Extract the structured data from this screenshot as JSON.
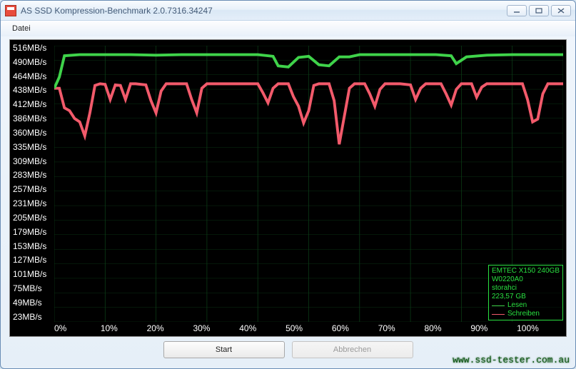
{
  "window": {
    "title": "AS SSD Kompression-Benchmark 2.0.7316.34247"
  },
  "menu": {
    "file": "Datei"
  },
  "chart": {
    "type": "line",
    "background_color": "#000000",
    "grid_color": "#0c4018",
    "text_color": "#ffffff",
    "y_labels": [
      "516MB/s",
      "490MB/s",
      "464MB/s",
      "438MB/s",
      "412MB/s",
      "386MB/s",
      "360MB/s",
      "335MB/s",
      "309MB/s",
      "283MB/s",
      "257MB/s",
      "231MB/s",
      "205MB/s",
      "179MB/s",
      "153MB/s",
      "127MB/s",
      "101MB/s",
      "75MB/s",
      "49MB/s",
      "23MB/s"
    ],
    "y_max": 516,
    "y_min": 23,
    "y_tick_count": 20,
    "x_labels": [
      "0%",
      "10%",
      "20%",
      "30%",
      "40%",
      "50%",
      "60%",
      "70%",
      "80%",
      "90%",
      "100%"
    ],
    "x_min": 0,
    "x_max": 100,
    "x_tick_step": 10,
    "label_fontsize": 12,
    "series": {
      "read": {
        "label": "Lesen",
        "color": "#3fd34a",
        "line_width": 1.3,
        "points": [
          [
            0,
            440
          ],
          [
            1,
            460
          ],
          [
            2,
            498
          ],
          [
            5,
            500
          ],
          [
            10,
            500
          ],
          [
            15,
            500
          ],
          [
            20,
            499
          ],
          [
            25,
            500
          ],
          [
            30,
            500
          ],
          [
            35,
            500
          ],
          [
            40,
            500
          ],
          [
            43,
            497
          ],
          [
            44,
            480
          ],
          [
            46,
            478
          ],
          [
            48,
            495
          ],
          [
            50,
            497
          ],
          [
            52,
            482
          ],
          [
            54,
            480
          ],
          [
            56,
            496
          ],
          [
            58,
            496
          ],
          [
            60,
            500
          ],
          [
            65,
            500
          ],
          [
            70,
            500
          ],
          [
            75,
            500
          ],
          [
            78,
            498
          ],
          [
            79,
            484
          ],
          [
            81,
            496
          ],
          [
            85,
            499
          ],
          [
            90,
            500
          ],
          [
            95,
            500
          ],
          [
            100,
            500
          ]
        ]
      },
      "write": {
        "label": "Schreiben",
        "color": "#f25a6b",
        "line_width": 1.3,
        "points": [
          [
            0,
            440
          ],
          [
            1,
            440
          ],
          [
            2,
            405
          ],
          [
            3,
            400
          ],
          [
            4,
            386
          ],
          [
            5,
            380
          ],
          [
            6,
            355
          ],
          [
            7,
            396
          ],
          [
            8,
            445
          ],
          [
            9,
            448
          ],
          [
            10,
            447
          ],
          [
            11,
            420
          ],
          [
            12,
            446
          ],
          [
            13,
            445
          ],
          [
            14,
            420
          ],
          [
            15,
            448
          ],
          [
            16,
            448
          ],
          [
            18,
            446
          ],
          [
            19,
            418
          ],
          [
            20,
            396
          ],
          [
            21,
            435
          ],
          [
            22,
            448
          ],
          [
            24,
            448
          ],
          [
            26,
            448
          ],
          [
            27,
            420
          ],
          [
            28,
            396
          ],
          [
            29,
            440
          ],
          [
            30,
            448
          ],
          [
            32,
            448
          ],
          [
            35,
            448
          ],
          [
            38,
            448
          ],
          [
            40,
            448
          ],
          [
            41,
            432
          ],
          [
            42,
            414
          ],
          [
            43,
            440
          ],
          [
            44,
            448
          ],
          [
            46,
            448
          ],
          [
            47,
            425
          ],
          [
            48,
            408
          ],
          [
            49,
            378
          ],
          [
            50,
            400
          ],
          [
            51,
            445
          ],
          [
            52,
            448
          ],
          [
            54,
            448
          ],
          [
            55,
            418
          ],
          [
            56,
            340
          ],
          [
            57,
            390
          ],
          [
            58,
            440
          ],
          [
            59,
            448
          ],
          [
            61,
            448
          ],
          [
            62,
            430
          ],
          [
            63,
            408
          ],
          [
            64,
            438
          ],
          [
            65,
            448
          ],
          [
            68,
            448
          ],
          [
            70,
            446
          ],
          [
            71,
            420
          ],
          [
            72,
            440
          ],
          [
            73,
            448
          ],
          [
            76,
            448
          ],
          [
            77,
            430
          ],
          [
            78,
            410
          ],
          [
            79,
            438
          ],
          [
            80,
            448
          ],
          [
            82,
            448
          ],
          [
            83,
            424
          ],
          [
            84,
            442
          ],
          [
            85,
            448
          ],
          [
            88,
            448
          ],
          [
            90,
            448
          ],
          [
            92,
            448
          ],
          [
            93,
            420
          ],
          [
            94,
            380
          ],
          [
            95,
            385
          ],
          [
            96,
            430
          ],
          [
            97,
            448
          ],
          [
            100,
            448
          ]
        ]
      }
    }
  },
  "legend": {
    "border_color": "#29e040",
    "text_color": "#29e040",
    "fontsize": 10,
    "lines": [
      "EMTEC X150 240GB",
      "W0220A0",
      "storahci",
      "223,57 GB"
    ]
  },
  "buttons": {
    "start": "Start",
    "cancel": "Abbrechen"
  },
  "watermark": {
    "text": "www.ssd-tester.com.au",
    "color": "#0f5515"
  }
}
